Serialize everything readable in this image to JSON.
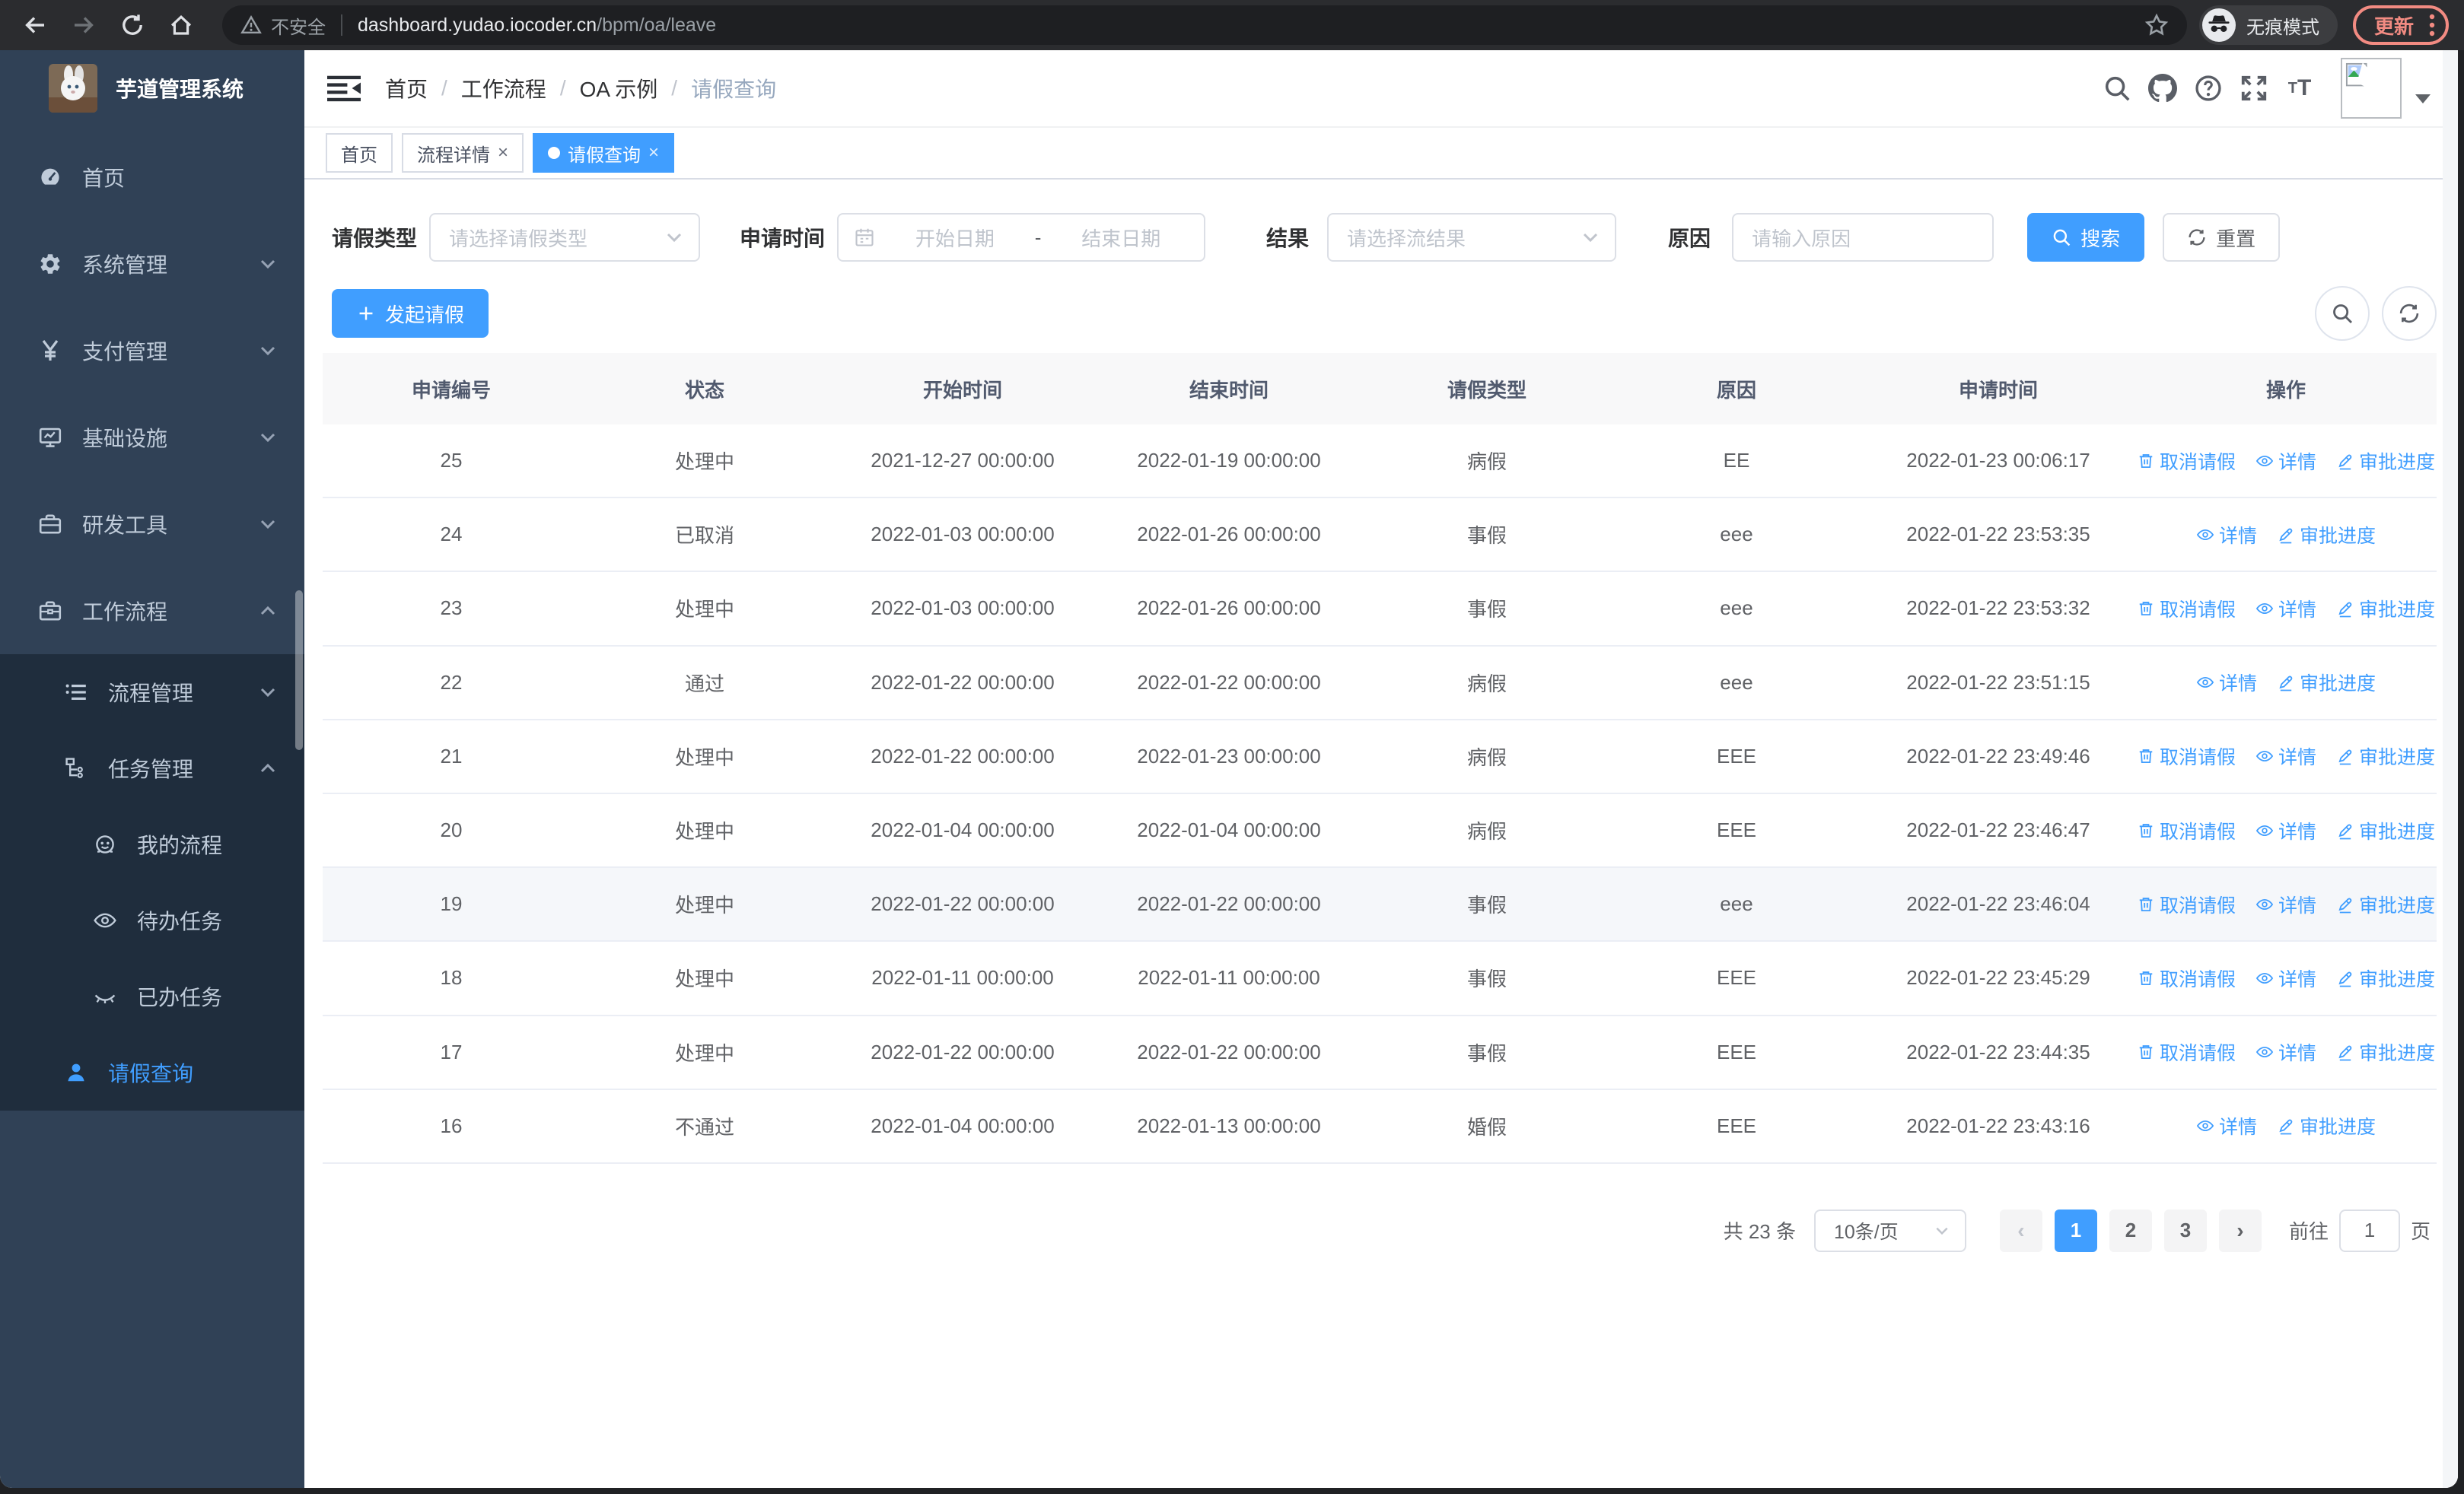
{
  "browser": {
    "security_label": "不安全",
    "url_host": "dashboard.yudao.iocoder.cn",
    "url_path": "/bpm/oa/leave",
    "incognito_label": "无痕模式",
    "update_label": "更新"
  },
  "sidebar": {
    "logo_title": "芋道管理系统",
    "menu": [
      {
        "name": "home",
        "label": "首页",
        "icon": "dashboard-icon",
        "level": 0
      },
      {
        "name": "system-management",
        "label": "系统管理",
        "icon": "gear-icon",
        "level": 0,
        "expand": "down"
      },
      {
        "name": "payment-management",
        "label": "支付管理",
        "icon": "yen-icon",
        "level": 0,
        "expand": "down"
      },
      {
        "name": "infrastructure",
        "label": "基础设施",
        "icon": "monitor-icon",
        "level": 0,
        "expand": "down"
      },
      {
        "name": "dev-tools",
        "label": "研发工具",
        "icon": "toolbox-icon",
        "level": 0,
        "expand": "down"
      },
      {
        "name": "workflow",
        "label": "工作流程",
        "icon": "briefcase-icon",
        "level": 0,
        "expand": "up"
      },
      {
        "name": "process-management",
        "label": "流程管理",
        "icon": "list-icon",
        "level": 1,
        "sub": true,
        "expand": "down"
      },
      {
        "name": "task-management",
        "label": "任务管理",
        "icon": "tree-icon",
        "level": 1,
        "sub": true,
        "expand": "up"
      },
      {
        "name": "my-process",
        "label": "我的流程",
        "icon": "robot-icon",
        "level": 2,
        "sub": true
      },
      {
        "name": "todo-task",
        "label": "待办任务",
        "icon": "eye-icon",
        "level": 2,
        "sub": true
      },
      {
        "name": "done-task",
        "label": "已办任务",
        "icon": "eye-closed-icon",
        "level": 2,
        "sub": true
      },
      {
        "name": "leave-query",
        "label": "请假查询",
        "icon": "user-icon",
        "level": 1,
        "sub": true,
        "active": true
      }
    ]
  },
  "header": {
    "breadcrumb": [
      "首页",
      "工作流程",
      "OA 示例",
      "请假查询"
    ]
  },
  "tabs": [
    {
      "name": "home",
      "label": "首页"
    },
    {
      "name": "process-detail",
      "label": "流程详情",
      "closable": true
    },
    {
      "name": "leave-query",
      "label": "请假查询",
      "closable": true,
      "active": true
    }
  ],
  "filters": {
    "leave_type_label": "请假类型",
    "leave_type_placeholder": "请选择请假类型",
    "apply_time_label": "申请时间",
    "date_start_placeholder": "开始日期",
    "date_separator": "-",
    "date_end_placeholder": "结束日期",
    "result_label": "结果",
    "result_placeholder": "请选择流结果",
    "reason_label": "原因",
    "reason_placeholder": "请输入原因",
    "search_label": "搜索",
    "reset_label": "重置"
  },
  "toolbar": {
    "create_label": "发起请假"
  },
  "table": {
    "columns": [
      {
        "key": "id",
        "label": "申请编号"
      },
      {
        "key": "status",
        "label": "状态"
      },
      {
        "key": "start",
        "label": "开始时间"
      },
      {
        "key": "end",
        "label": "结束时间"
      },
      {
        "key": "type",
        "label": "请假类型"
      },
      {
        "key": "reason",
        "label": "原因"
      },
      {
        "key": "applied",
        "label": "申请时间"
      },
      {
        "key": "actions",
        "label": "操作"
      }
    ],
    "action_defs": {
      "cancel": {
        "label": "取消请假",
        "icon": "trash-icon"
      },
      "detail": {
        "label": "详情",
        "icon": "eye-icon"
      },
      "progress": {
        "label": "审批进度",
        "icon": "pen-icon"
      }
    },
    "rows": [
      {
        "id": "25",
        "status": "处理中",
        "start": "2021-12-27 00:00:00",
        "end": "2022-01-19 00:00:00",
        "type": "病假",
        "reason": "EE",
        "applied": "2022-01-23 00:06:17",
        "actions": [
          "cancel",
          "detail",
          "progress"
        ]
      },
      {
        "id": "24",
        "status": "已取消",
        "start": "2022-01-03 00:00:00",
        "end": "2022-01-26 00:00:00",
        "type": "事假",
        "reason": "eee",
        "applied": "2022-01-22 23:53:35",
        "actions": [
          "detail",
          "progress"
        ]
      },
      {
        "id": "23",
        "status": "处理中",
        "start": "2022-01-03 00:00:00",
        "end": "2022-01-26 00:00:00",
        "type": "事假",
        "reason": "eee",
        "applied": "2022-01-22 23:53:32",
        "actions": [
          "cancel",
          "detail",
          "progress"
        ]
      },
      {
        "id": "22",
        "status": "通过",
        "start": "2022-01-22 00:00:00",
        "end": "2022-01-22 00:00:00",
        "type": "病假",
        "reason": "eee",
        "applied": "2022-01-22 23:51:15",
        "actions": [
          "detail",
          "progress"
        ]
      },
      {
        "id": "21",
        "status": "处理中",
        "start": "2022-01-22 00:00:00",
        "end": "2022-01-23 00:00:00",
        "type": "病假",
        "reason": "EEE",
        "applied": "2022-01-22 23:49:46",
        "actions": [
          "cancel",
          "detail",
          "progress"
        ]
      },
      {
        "id": "20",
        "status": "处理中",
        "start": "2022-01-04 00:00:00",
        "end": "2022-01-04 00:00:00",
        "type": "病假",
        "reason": "EEE",
        "applied": "2022-01-22 23:46:47",
        "actions": [
          "cancel",
          "detail",
          "progress"
        ]
      },
      {
        "id": "19",
        "status": "处理中",
        "start": "2022-01-22 00:00:00",
        "end": "2022-01-22 00:00:00",
        "type": "事假",
        "reason": "eee",
        "applied": "2022-01-22 23:46:04",
        "actions": [
          "cancel",
          "detail",
          "progress"
        ],
        "highlight": true
      },
      {
        "id": "18",
        "status": "处理中",
        "start": "2022-01-11 00:00:00",
        "end": "2022-01-11 00:00:00",
        "type": "事假",
        "reason": "EEE",
        "applied": "2022-01-22 23:45:29",
        "actions": [
          "cancel",
          "detail",
          "progress"
        ]
      },
      {
        "id": "17",
        "status": "处理中",
        "start": "2022-01-22 00:00:00",
        "end": "2022-01-22 00:00:00",
        "type": "事假",
        "reason": "EEE",
        "applied": "2022-01-22 23:44:35",
        "actions": [
          "cancel",
          "detail",
          "progress"
        ]
      },
      {
        "id": "16",
        "status": "不通过",
        "start": "2022-01-04 00:00:00",
        "end": "2022-01-13 00:00:00",
        "type": "婚假",
        "reason": "EEE",
        "applied": "2022-01-22 23:43:16",
        "actions": [
          "detail",
          "progress"
        ]
      }
    ]
  },
  "pagination": {
    "total_label": "共 23 条",
    "page_size_label": "10条/页",
    "pages": [
      "1",
      "2",
      "3"
    ],
    "current_page": "1",
    "prev_label": "‹",
    "next_label": "›",
    "goto_label": "前往",
    "goto_value": "1",
    "goto_unit": "页"
  },
  "colors": {
    "primary": "#409eff",
    "sidebar_bg": "#304156",
    "submenu_bg": "#1f2d3d",
    "update_accent": "#f28b82"
  }
}
